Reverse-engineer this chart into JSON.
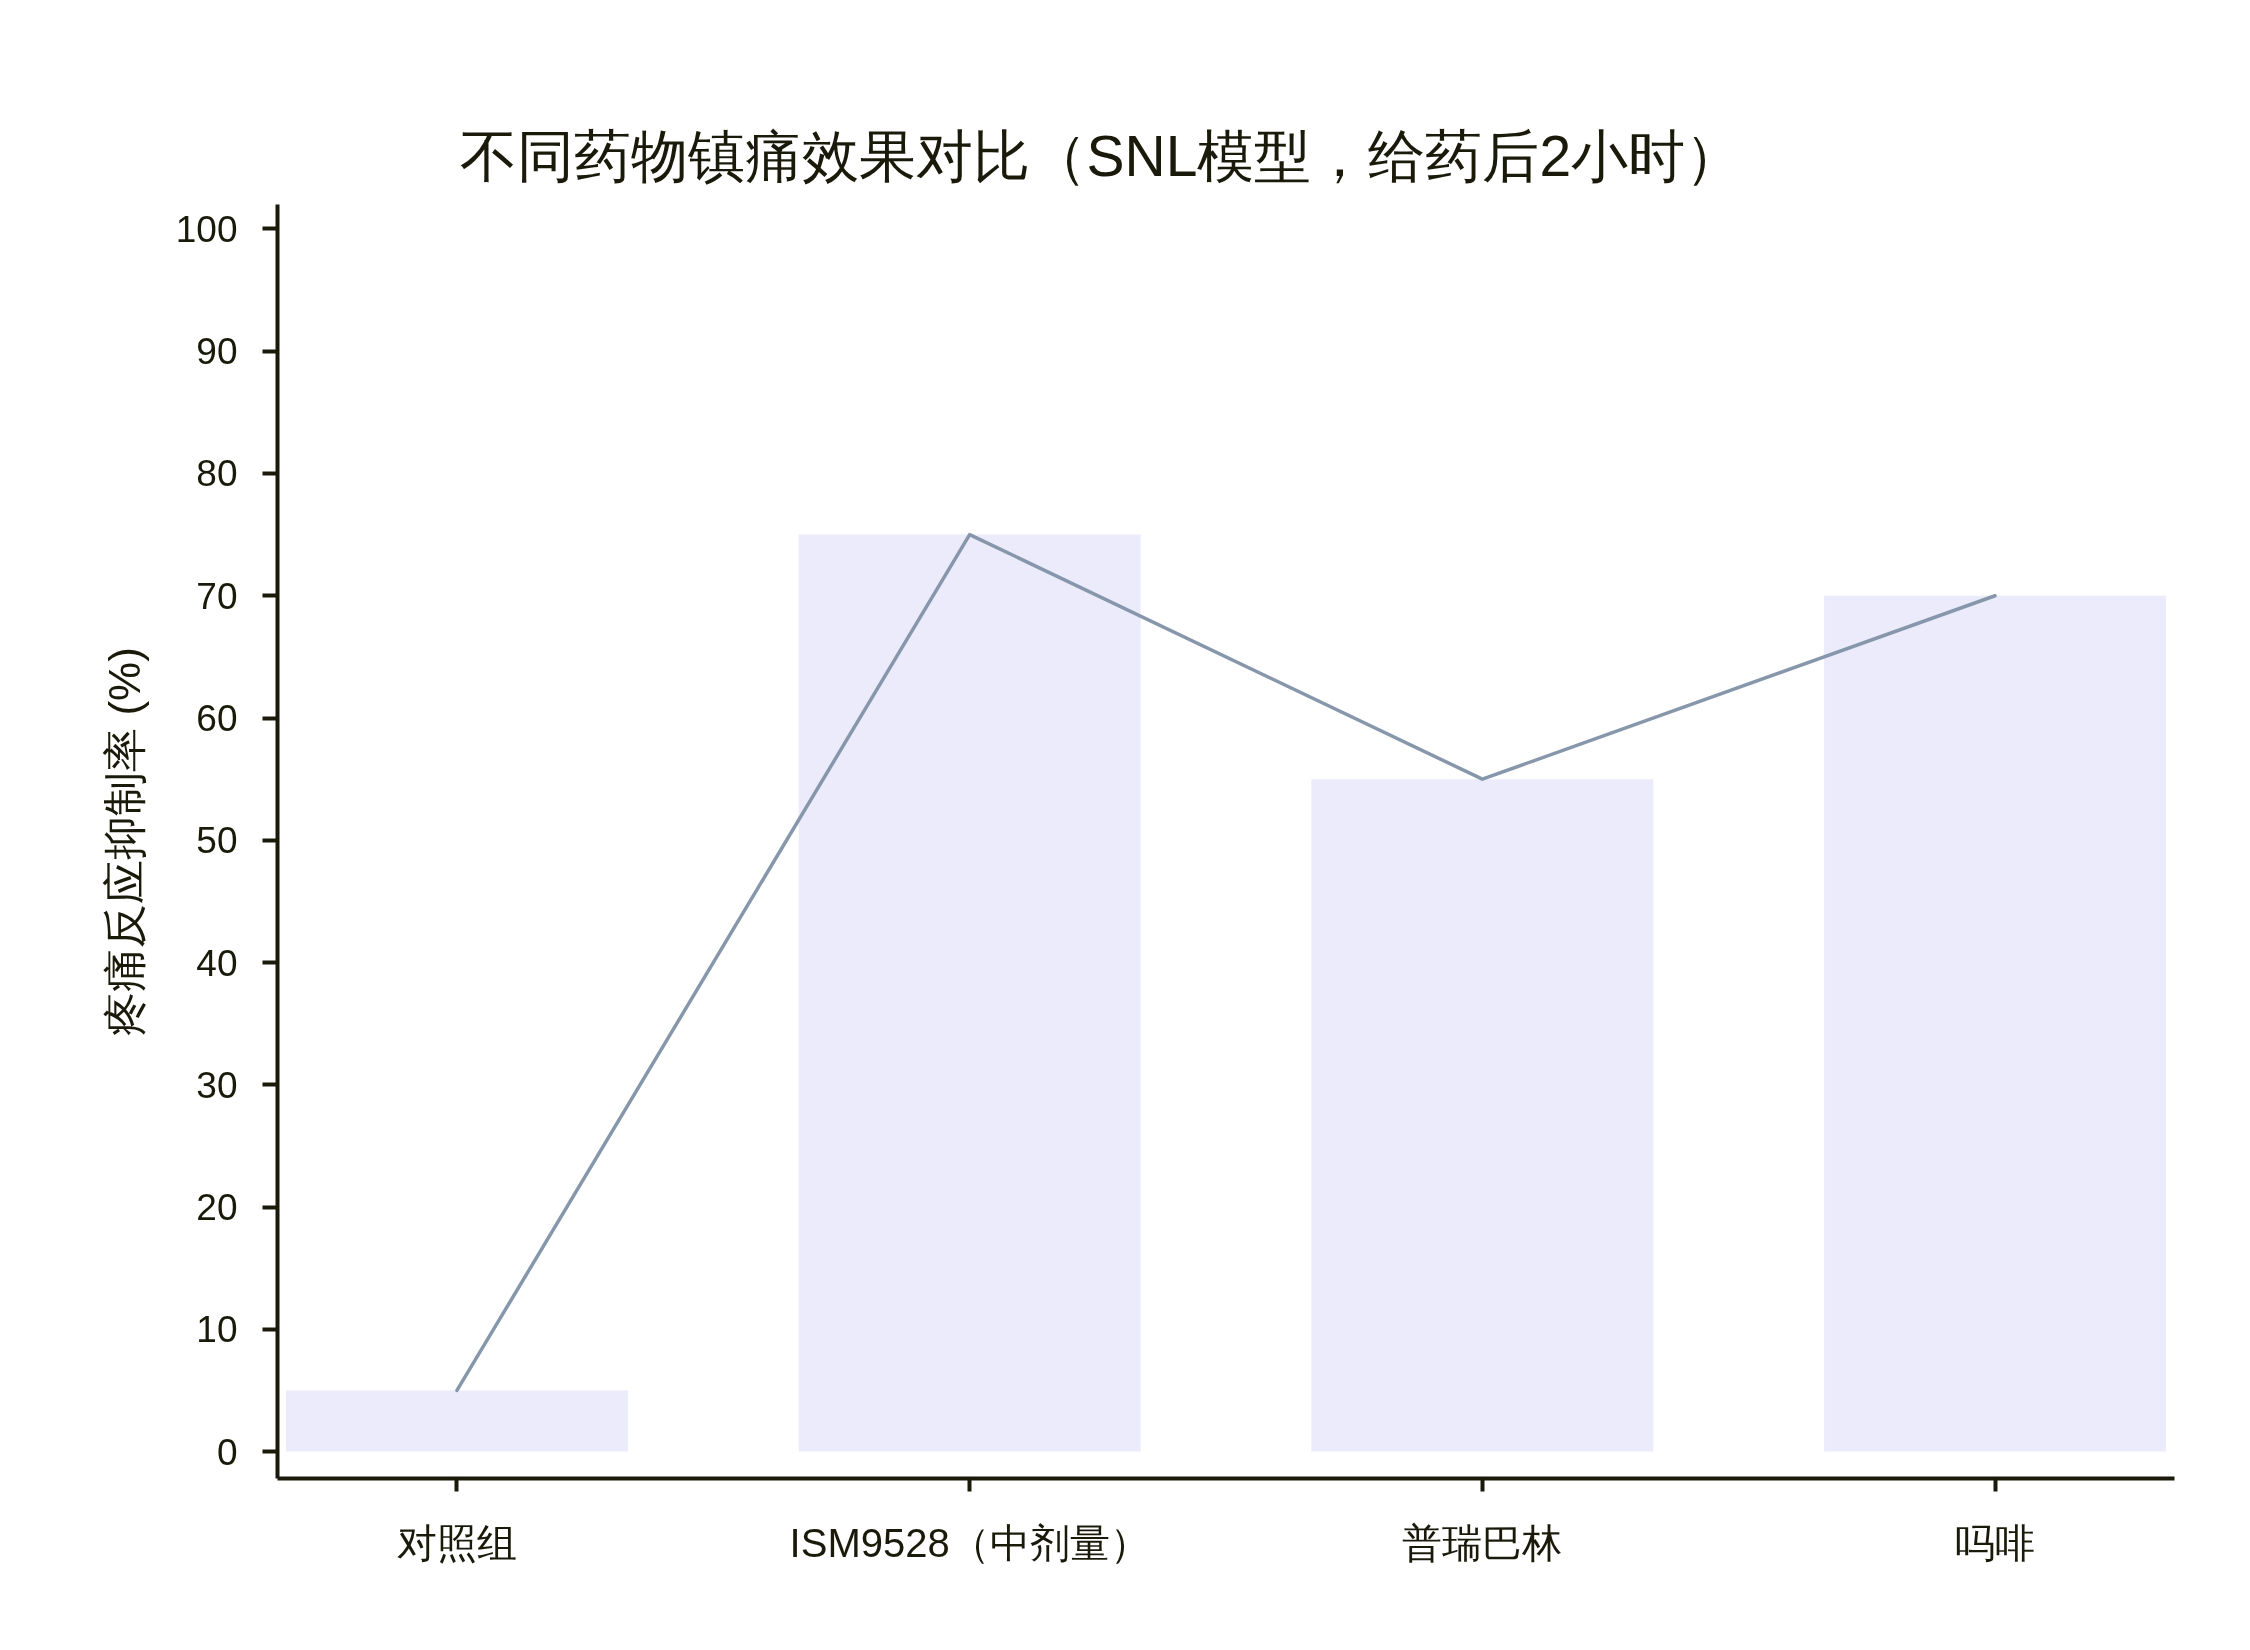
{
  "chart_data": {
    "type": "bar",
    "title": "不同药物镇痛效果对比（SNL模型，给药后2小时）",
    "ylabel": "疼痛反应抑制率 (%)",
    "categories": [
      "对照组",
      "ISM9528（中剂量）",
      "普瑞巴林",
      "吗啡"
    ],
    "series": [
      {
        "color": "#ebebfc",
        "values": [
          5,
          75,
          55,
          70
        ]
      },
      {
        "type": "line",
        "color": "#8797ab",
        "values": [
          5,
          75,
          55,
          70
        ]
      }
    ],
    "ylim": [
      -2.2,
      102
    ],
    "yticks": [
      0,
      10,
      20,
      30,
      40,
      50,
      60,
      70,
      80,
      90,
      100
    ],
    "line_style": "solid"
  }
}
